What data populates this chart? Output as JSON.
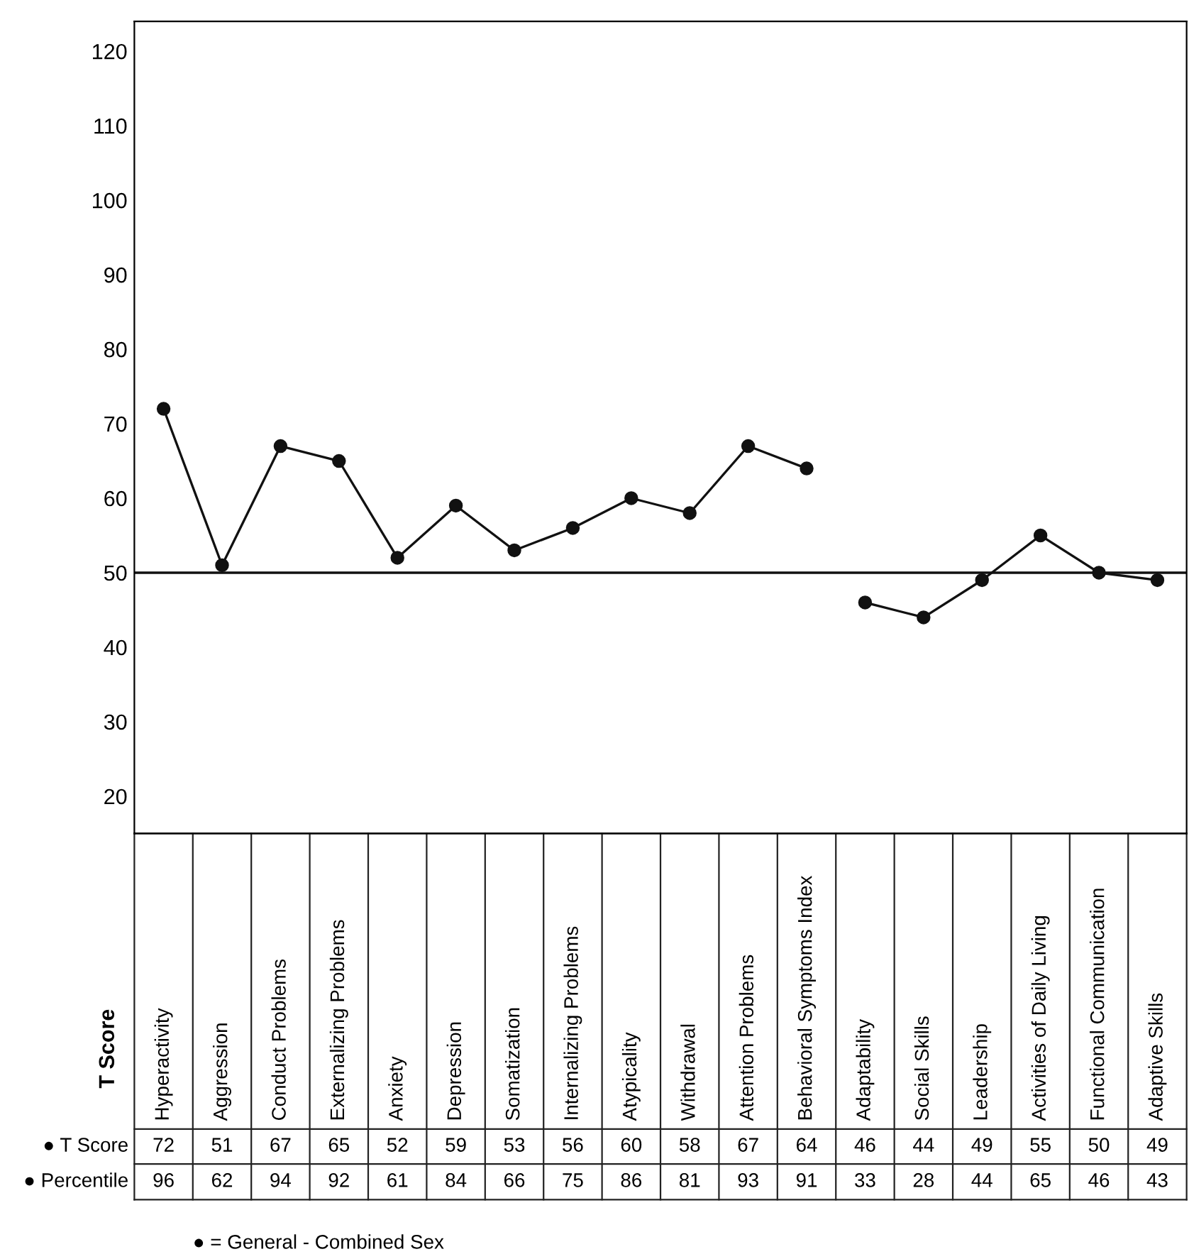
{
  "chart_data": {
    "type": "line",
    "ylabel": "T Score",
    "categories": [
      "Hyperactivity",
      "Aggression",
      "Conduct Problems",
      "Externalizing Problems",
      "Anxiety",
      "Depression",
      "Somatization",
      "Internalizing Problems",
      "Atypicality",
      "Withdrawal",
      "Attention Problems",
      "Behavioral Symptoms Index",
      "Adaptability",
      "Social Skills",
      "Leadership",
      "Activities of Daily Living",
      "Functional Communication",
      "Adaptive Skills"
    ],
    "series": [
      {
        "name": "● T Score",
        "type": "scatter",
        "color": "#111111",
        "values": [
          72,
          51,
          67,
          65,
          52,
          59,
          53,
          56,
          60,
          58,
          67,
          64,
          46,
          44,
          49,
          55,
          50,
          49
        ],
        "value_labels": [
          "72",
          "51",
          "67",
          "65",
          "52",
          "59",
          "53",
          "56",
          "60",
          "58",
          "67",
          "64",
          "46",
          "44",
          "49",
          "55",
          "50",
          "49"
        ]
      },
      {
        "color": "#111111",
        "marker": "none",
        "values": [
          72,
          51,
          67,
          65,
          52,
          59,
          53,
          56,
          60,
          58,
          67,
          64,
          null,
          null,
          null,
          null,
          null,
          null
        ]
      },
      {
        "color": "#111111",
        "marker": "none",
        "values": [
          null,
          null,
          null,
          null,
          null,
          null,
          null,
          null,
          null,
          null,
          null,
          null,
          46,
          44,
          49,
          55,
          50,
          49
        ]
      }
    ],
    "ylim": [
      15,
      124
    ],
    "yticks": [
      20,
      30,
      40,
      50,
      60,
      70,
      80,
      90,
      100,
      110,
      120
    ],
    "ref_lines": [
      {
        "axis": "y",
        "value": 50,
        "color": "#111111",
        "line_style": "solid"
      }
    ],
    "marker": "circle",
    "line_style": "solid",
    "grid": false,
    "tick_labels": "y",
    "annotations": [
      "● Percentile",
      "96",
      "62",
      "94",
      "92",
      "61",
      "84",
      "66",
      "75",
      "86",
      "81",
      "93",
      "91",
      "33",
      "28",
      "44",
      "65",
      "46",
      "43",
      "● = General - Combined Sex"
    ]
  }
}
